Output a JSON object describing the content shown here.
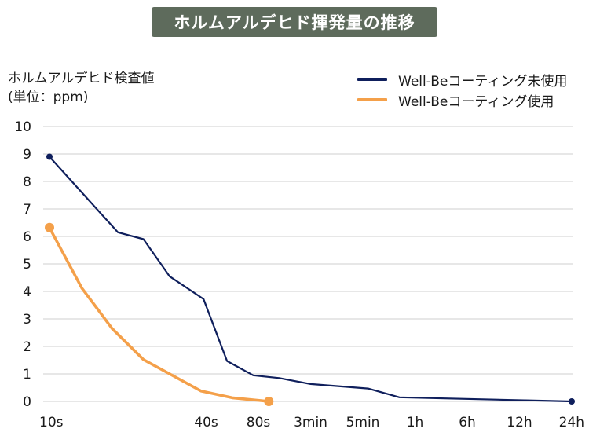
{
  "chart_data": {
    "type": "line",
    "title": "ホルムアルデヒド揮発量の推移",
    "ylabel_line1": "ホルムアルデヒド検査値",
    "ylabel_line2": "(単位：ppm)",
    "xlabel": "",
    "ylim": [
      0,
      10
    ],
    "yticks": [
      "0",
      "1",
      "2",
      "3",
      "4",
      "5",
      "6",
      "7",
      "8",
      "9",
      "10"
    ],
    "grid": true,
    "legend_position": "top-right",
    "x_ticks": [
      {
        "label": "10s",
        "x": 0
      },
      {
        "label": "40s",
        "x": 3
      },
      {
        "label": "80s",
        "x": 4
      },
      {
        "label": "3min",
        "x": 5
      },
      {
        "label": "5min",
        "x": 6
      },
      {
        "label": "1h",
        "x": 7
      },
      {
        "label": "6h",
        "x": 8
      },
      {
        "label": "12h",
        "x": 9
      },
      {
        "label": "24h",
        "x": 10
      }
    ],
    "x_range": [
      0,
      10
    ],
    "series": [
      {
        "name": "Well-Beコーティング未使用",
        "color": "#0f1f5c",
        "points": [
          [
            0,
            8.9
          ],
          [
            1.31,
            6.15
          ],
          [
            1.8,
            5.9
          ],
          [
            2.3,
            4.55
          ],
          [
            2.95,
            3.72
          ],
          [
            3.4,
            1.47
          ],
          [
            3.9,
            0.95
          ],
          [
            4.4,
            0.85
          ],
          [
            5.0,
            0.63
          ],
          [
            6.1,
            0.47
          ],
          [
            6.7,
            0.15
          ],
          [
            10,
            0.0
          ]
        ],
        "markers": [
          [
            0,
            8.9
          ],
          [
            10,
            0.0
          ]
        ]
      },
      {
        "name": "Well-Beコーティング使用",
        "color": "#f4a04a",
        "points": [
          [
            0,
            6.32
          ],
          [
            0.62,
            4.12
          ],
          [
            1.2,
            2.65
          ],
          [
            1.8,
            1.52
          ],
          [
            2.9,
            0.38
          ],
          [
            3.5,
            0.13
          ],
          [
            4.2,
            0.0
          ]
        ],
        "markers": [
          [
            0,
            6.32
          ],
          [
            4.2,
            0.0
          ]
        ]
      }
    ]
  }
}
